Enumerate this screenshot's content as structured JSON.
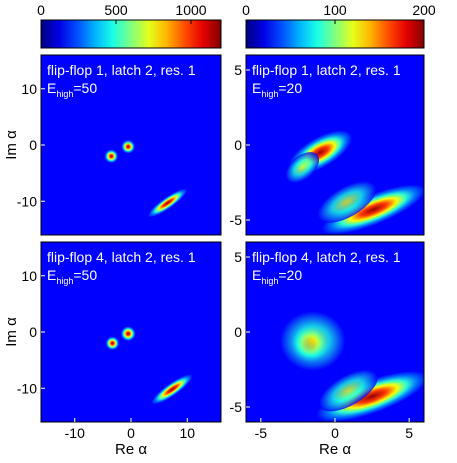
{
  "chart_data": {
    "type": "heatmap",
    "colormap": "jet",
    "colorbars": [
      {
        "name": "colorbar-left",
        "range": [
          0,
          1200
        ],
        "ticks": [
          "0",
          "500",
          "1000"
        ],
        "tick_values": [
          0,
          500,
          1000
        ]
      },
      {
        "name": "colorbar-right",
        "range": [
          0,
          200
        ],
        "ticks": [
          "0",
          "100",
          "200"
        ],
        "tick_values": [
          0,
          100,
          200
        ]
      }
    ],
    "panels": [
      {
        "label": "flip-flop 1, latch 2, res. 1",
        "energy_prefix": "E",
        "energy_sub": "high",
        "energy_value": "=50",
        "xlim": [
          -16,
          16
        ],
        "ylim": [
          -16,
          16
        ],
        "yticks": [
          10,
          0,
          -10
        ],
        "ytick_labels": [
          "10",
          "0",
          "-10"
        ],
        "colorbar": 0,
        "blobs": [
          {
            "x": -3.5,
            "y": -2,
            "sx": 0.55,
            "sy": 0.55,
            "angle": 0,
            "peak": 1.0
          },
          {
            "x": -0.5,
            "y": -0.3,
            "sx": 0.55,
            "sy": 0.55,
            "angle": 0,
            "peak": 1.0
          },
          {
            "x": 6.5,
            "y": -10.3,
            "sx": 1.9,
            "sy": 0.45,
            "angle": 35,
            "peak": 1.0
          }
        ]
      },
      {
        "label": "flip-flop 1, latch 2, res. 1",
        "energy_prefix": "E",
        "energy_sub": "high",
        "energy_value": "=20",
        "xlim": [
          -6,
          6
        ],
        "ylim": [
          -6,
          6
        ],
        "yticks": [
          5,
          0,
          -5
        ],
        "ytick_labels": [
          "5",
          "0",
          "-5"
        ],
        "colorbar": 1,
        "blobs": [
          {
            "x": -1.0,
            "y": -0.5,
            "sx": 1.1,
            "sy": 0.45,
            "angle": 30,
            "peak": 0.85
          },
          {
            "x": -2.2,
            "y": -1.5,
            "sx": 0.6,
            "sy": 0.35,
            "angle": 40,
            "peak": 0.3
          },
          {
            "x": 2.6,
            "y": -4.3,
            "sx": 1.7,
            "sy": 0.45,
            "angle": 22,
            "peak": 1.0
          },
          {
            "x": 0.8,
            "y": -3.8,
            "sx": 1.0,
            "sy": 0.45,
            "angle": 30,
            "peak": 0.25
          }
        ]
      },
      {
        "label": "flip-flop 4, latch 2, res. 1",
        "energy_prefix": "E",
        "energy_sub": "high",
        "energy_value": "=50",
        "xlim": [
          -16,
          16
        ],
        "ylim": [
          -16,
          16
        ],
        "yticks": [
          10,
          0,
          -10
        ],
        "ytick_labels": [
          "10",
          "0",
          "-10"
        ],
        "xticks": [
          -10,
          0,
          10
        ],
        "xtick_labels": [
          "-10",
          "0",
          "10"
        ],
        "colorbar": 0,
        "blobs": [
          {
            "x": -3.3,
            "y": -2,
            "sx": 0.55,
            "sy": 0.55,
            "angle": 0,
            "peak": 1.0
          },
          {
            "x": -0.5,
            "y": -0.3,
            "sx": 0.6,
            "sy": 0.6,
            "angle": 0,
            "peak": 1.0
          },
          {
            "x": 7.3,
            "y": -10.2,
            "sx": 2.0,
            "sy": 0.5,
            "angle": 35,
            "peak": 1.0
          }
        ]
      },
      {
        "label": "flip-flop 4, latch 2, res. 1",
        "energy_prefix": "E",
        "energy_sub": "high",
        "energy_value": "=20",
        "xlim": [
          -6,
          6
        ],
        "ylim": [
          -6,
          6
        ],
        "yticks": [
          5,
          0,
          -5
        ],
        "ytick_labels": [
          "5",
          "0",
          "-5"
        ],
        "xticks": [
          -5,
          0,
          5
        ],
        "xtick_labels": [
          "-5",
          "0",
          "5"
        ],
        "colorbar": 1,
        "blobs": [
          {
            "x": -1.7,
            "y": -0.8,
            "sx": 0.55,
            "sy": 0.55,
            "angle": 0,
            "peak": 1.0
          },
          {
            "x": -1.5,
            "y": -0.6,
            "sx": 1.0,
            "sy": 0.9,
            "angle": 0,
            "peak": 0.25
          },
          {
            "x": 2.5,
            "y": -4.3,
            "sx": 1.8,
            "sy": 0.5,
            "angle": 20,
            "peak": 1.0
          },
          {
            "x": 0.9,
            "y": -3.9,
            "sx": 1.0,
            "sy": 0.45,
            "angle": 30,
            "peak": 0.25
          }
        ]
      }
    ],
    "ylabel": "Im α",
    "xlabel": "Re α"
  }
}
